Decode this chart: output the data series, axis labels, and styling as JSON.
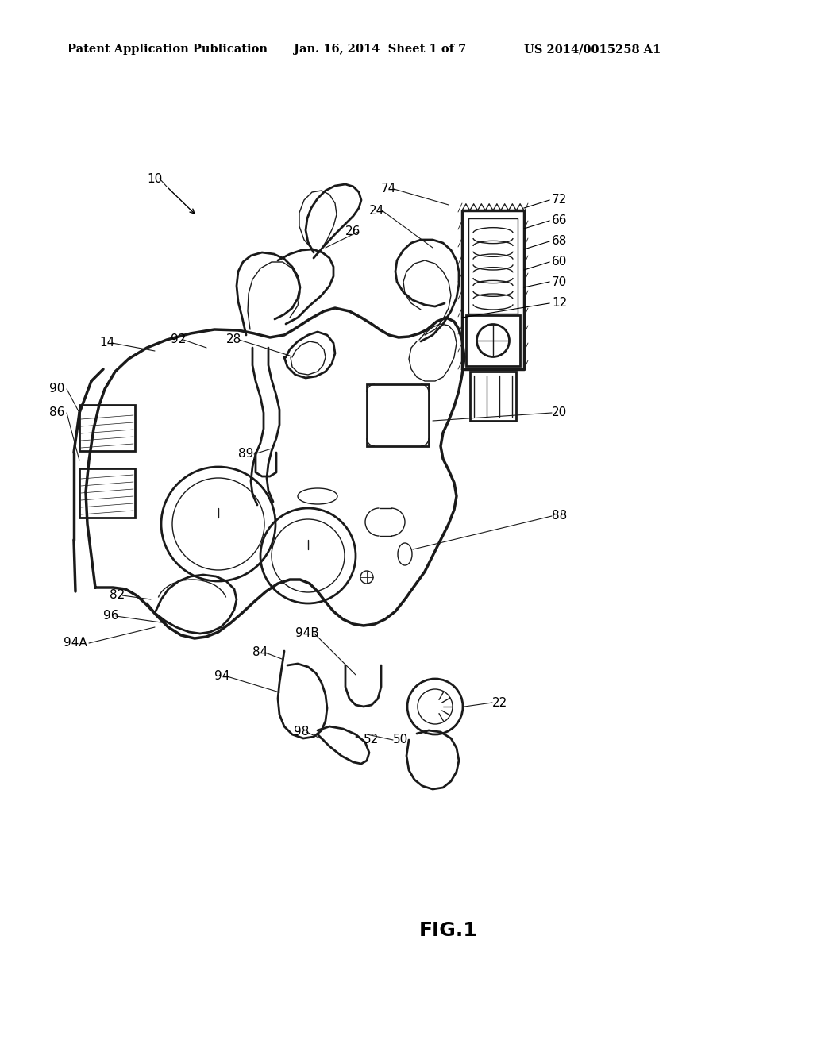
{
  "bg_color": "#ffffff",
  "header_left": "Patent Application Publication",
  "header_center": "Jan. 16, 2014  Sheet 1 of 7",
  "header_right": "US 2014/0015258 A1",
  "fig_label": "FIG.1",
  "header_fontsize": 10.5,
  "label_fontsize": 11,
  "fig_fontsize": 18,
  "line_color": "#1a1a1a",
  "lw_main": 2.0,
  "lw_thin": 1.0,
  "lw_thick": 2.5
}
